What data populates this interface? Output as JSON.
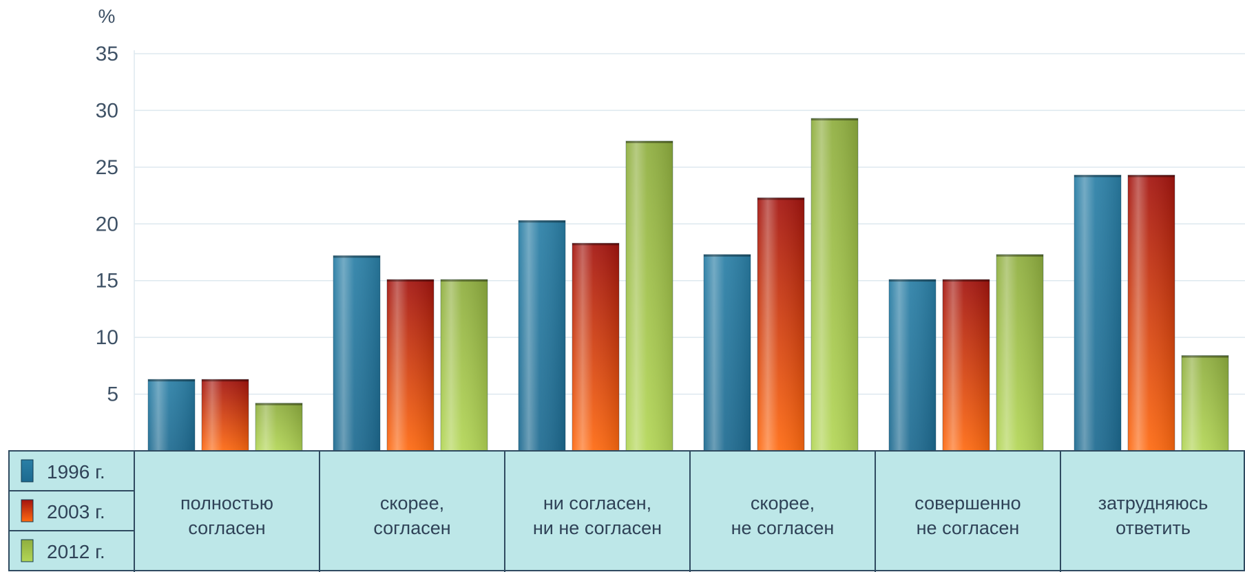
{
  "chart_data": {
    "type": "bar",
    "unit_label": "%",
    "ylim": [
      0,
      35
    ],
    "yticks": [
      5,
      10,
      15,
      20,
      25,
      30,
      35
    ],
    "grid": true,
    "legend_position": "bottom-left",
    "categories": [
      [
        "полностью",
        "согласен"
      ],
      [
        "скорее,",
        "согласен"
      ],
      [
        "ни согласен,",
        "ни не согласен"
      ],
      [
        "скорее,",
        "не согласен"
      ],
      [
        "совершенно",
        "не согласен"
      ],
      [
        "затрудняюсь",
        "ответить"
      ]
    ],
    "series": [
      {
        "name": "1996 г.",
        "values": [
          6.3,
          17.2,
          20.3,
          17.3,
          15.1,
          24.3
        ],
        "color_top": "#2a7fa6",
        "color_bottom": "#1d6a90"
      },
      {
        "name": "2003 г.",
        "values": [
          6.3,
          15.1,
          18.3,
          22.3,
          15.1,
          24.3
        ],
        "color_top": "#a3140f",
        "color_bottom": "#ff6a10"
      },
      {
        "name": "2012 г.",
        "values": [
          4.2,
          15.1,
          27.3,
          29.3,
          17.3,
          8.4
        ],
        "color_top": "#8fae3f",
        "color_bottom": "#b3d656"
      }
    ]
  },
  "colors": {
    "table_fill": "#bde7e8",
    "table_border": "#2f4a60",
    "grid": "#dde8ef"
  }
}
